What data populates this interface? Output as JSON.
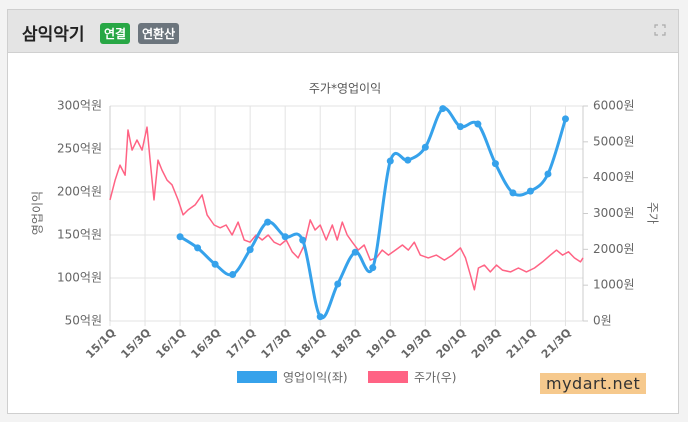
{
  "header": {
    "title": "삼익악기",
    "badges": [
      "연결",
      "연환산"
    ]
  },
  "watermark": "mydart.net",
  "chart_data": {
    "type": "line",
    "title": "주가*영업이익",
    "y_label": "영업이익",
    "y2_label": "주가",
    "grid": true,
    "xlim": [
      0,
      27
    ],
    "xticks": [
      {
        "value": 0,
        "label": "15/1Q"
      },
      {
        "value": 2,
        "label": "15/3Q"
      },
      {
        "value": 4,
        "label": "16/1Q"
      },
      {
        "value": 6,
        "label": "16/3Q"
      },
      {
        "value": 8,
        "label": "17/1Q"
      },
      {
        "value": 10,
        "label": "17/3Q"
      },
      {
        "value": 12,
        "label": "18/1Q"
      },
      {
        "value": 14,
        "label": "18/3Q"
      },
      {
        "value": 16,
        "label": "19/1Q"
      },
      {
        "value": 18,
        "label": "19/3Q"
      },
      {
        "value": 20,
        "label": "20/1Q"
      },
      {
        "value": 22,
        "label": "20/3Q"
      },
      {
        "value": 24,
        "label": "21/1Q"
      },
      {
        "value": 26,
        "label": "21/3Q"
      }
    ],
    "ylim": [
      50,
      300
    ],
    "yticks": [
      {
        "value": 50,
        "label": "50억원"
      },
      {
        "value": 100,
        "label": "100억원"
      },
      {
        "value": 150,
        "label": "150억원"
      },
      {
        "value": 200,
        "label": "200억원"
      },
      {
        "value": 250,
        "label": "250억원"
      },
      {
        "value": 300,
        "label": "300억원"
      }
    ],
    "y2lim": [
      0,
      6000
    ],
    "y2ticks": [
      {
        "value": 0,
        "label": "0원"
      },
      {
        "value": 1000,
        "label": "1000원"
      },
      {
        "value": 2000,
        "label": "2000원"
      },
      {
        "value": 3000,
        "label": "3000원"
      },
      {
        "value": 4000,
        "label": "4000원"
      },
      {
        "value": 5000,
        "label": "5000원"
      },
      {
        "value": 6000,
        "label": "6000원"
      }
    ],
    "series": [
      {
        "name": "주가(우)",
        "color": "#ff6384",
        "axis": "y2",
        "x": [
          0,
          0.29,
          0.57,
          0.86,
          1.03,
          1.26,
          1.54,
          1.83,
          2.11,
          2.29,
          2.51,
          2.74,
          2.97,
          3.26,
          3.54,
          3.89,
          4.17,
          4.46,
          4.86,
          5.26,
          5.54,
          5.94,
          6.29,
          6.63,
          6.97,
          7.31,
          7.66,
          8.0,
          8.34,
          8.69,
          9.03,
          9.37,
          9.71,
          10.06,
          10.4,
          10.74,
          11.09,
          11.43,
          11.71,
          12.0,
          12.34,
          12.69,
          12.97,
          13.26,
          13.54,
          13.83,
          14.17,
          14.51,
          14.86,
          15.2,
          15.54,
          15.89,
          16.29,
          16.69,
          17.03,
          17.37,
          17.71,
          18.17,
          18.63,
          19.09,
          19.54,
          20.0,
          20.29,
          20.57,
          20.8,
          21.03,
          21.37,
          21.71,
          22.06,
          22.4,
          22.86,
          23.31,
          23.77,
          24.23,
          24.69,
          25.14,
          25.49,
          25.83,
          26.17,
          26.51,
          26.86,
          27.0
        ],
        "values": [
          3380,
          3930,
          4350,
          4070,
          5330,
          4770,
          5050,
          4770,
          5410,
          4490,
          3380,
          4490,
          4210,
          3930,
          3800,
          3380,
          2960,
          3100,
          3240,
          3520,
          2960,
          2680,
          2600,
          2680,
          2400,
          2760,
          2260,
          2200,
          2400,
          2260,
          2400,
          2200,
          2120,
          2260,
          1930,
          1760,
          2120,
          2820,
          2540,
          2680,
          2260,
          2680,
          2260,
          2760,
          2400,
          2200,
          1980,
          2120,
          1700,
          1760,
          1980,
          1840,
          1980,
          2120,
          1980,
          2200,
          1840,
          1760,
          1840,
          1700,
          1840,
          2040,
          1760,
          1280,
          870,
          1480,
          1560,
          1370,
          1560,
          1420,
          1370,
          1480,
          1370,
          1480,
          1650,
          1840,
          1980,
          1840,
          1930,
          1760,
          1650,
          1760
        ]
      },
      {
        "name": "영업이익(좌)",
        "color": "#36a2eb",
        "x": [
          4,
          5,
          6,
          7,
          8,
          9,
          10,
          11,
          12,
          13,
          14,
          15,
          16,
          17,
          18,
          19,
          20,
          21,
          22,
          23,
          24,
          25,
          26
        ],
        "values": [
          148,
          135,
          116,
          104,
          133,
          165,
          148,
          144,
          55,
          93,
          130,
          112,
          236,
          237,
          252,
          297,
          276,
          279,
          233,
          199,
          201,
          221,
          285
        ]
      }
    ]
  }
}
